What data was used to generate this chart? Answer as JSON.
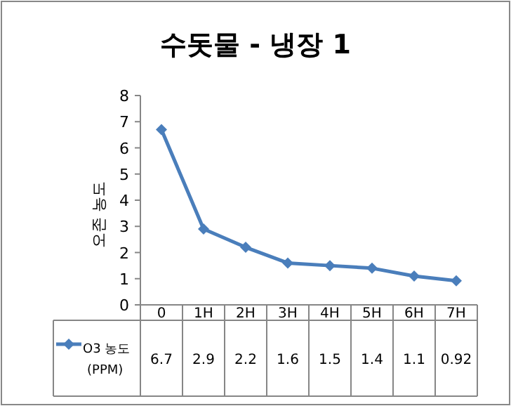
{
  "chart_data": {
    "type": "line",
    "title": "수돗물 - 냉장 1",
    "ylabel": "오존 농도",
    "categories": [
      "0",
      "1H",
      "2H",
      "3H",
      "4H",
      "5H",
      "6H",
      "7H"
    ],
    "series": [
      {
        "name": "O3 농도 (PPM)",
        "color": "#4a7ebb",
        "values": [
          6.7,
          2.9,
          2.2,
          1.6,
          1.5,
          1.4,
          1.1,
          0.92
        ]
      }
    ],
    "ylim": [
      0,
      8
    ],
    "yticks": [
      0,
      1,
      2,
      3,
      4,
      5,
      6,
      7,
      8
    ],
    "data_labels": true,
    "legend": "bottom",
    "marker": "diamond",
    "grid": false
  }
}
